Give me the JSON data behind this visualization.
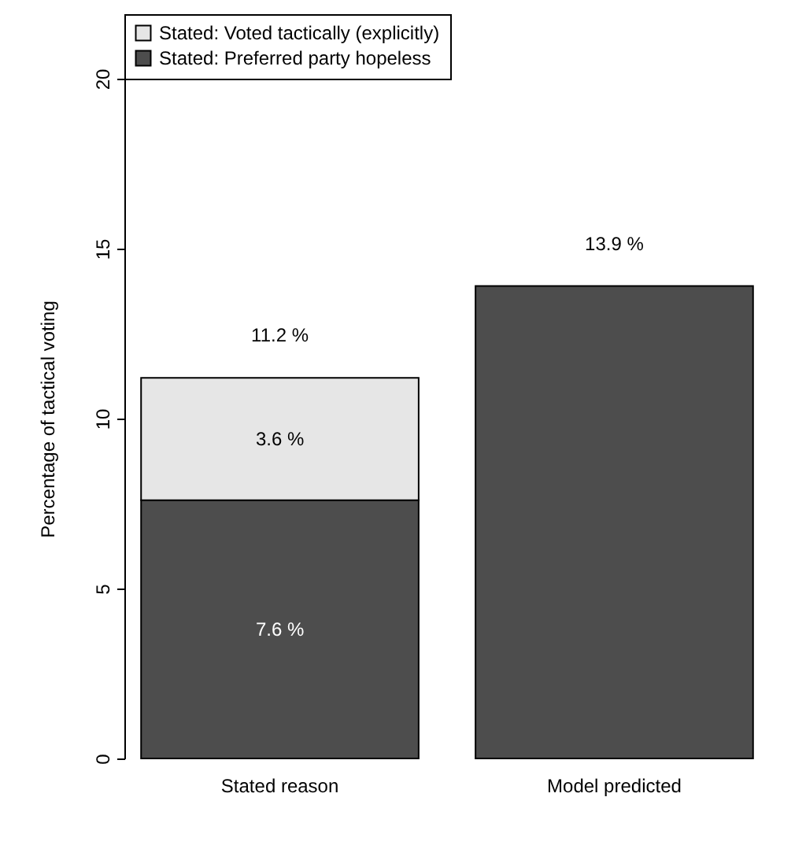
{
  "chart_data": {
    "type": "bar",
    "stacked": true,
    "ylabel": "Percentage of tactical voting",
    "categories": [
      "Stated reason",
      "Model predicted"
    ],
    "series": [
      {
        "name": "Stated: Preferred party hopeless",
        "color": "#4d4d4d",
        "values": [
          7.6,
          13.9
        ],
        "value_labels": [
          "7.6 %",
          null
        ]
      },
      {
        "name": "Stated: Voted tactically (explicitly)",
        "color": "#e6e6e6",
        "values": [
          3.6,
          null
        ],
        "value_labels": [
          "3.6 %",
          null
        ]
      }
    ],
    "totals": [
      "11.2 %",
      "13.9 %"
    ],
    "ylim": [
      0,
      20
    ],
    "yticks": [
      0,
      5,
      10,
      15,
      20
    ],
    "legend": "top"
  }
}
